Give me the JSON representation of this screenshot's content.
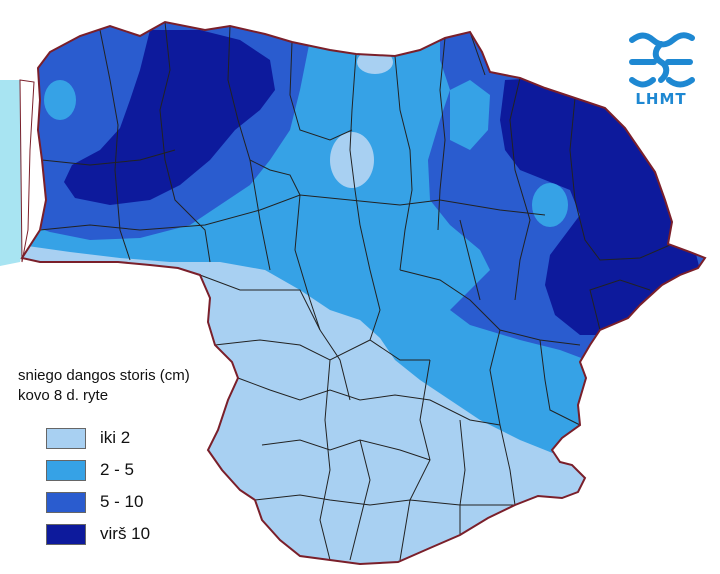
{
  "legend": {
    "title_line1": "sniego dangos storis (cm)",
    "title_line2": "kovo 8 d. ryte",
    "items": [
      {
        "label": "iki 2",
        "color": "#a8d0f2"
      },
      {
        "label": "2 - 5",
        "color": "#36a2e6"
      },
      {
        "label": "5 - 10",
        "color": "#2a5ccf"
      },
      {
        "label": "virš 10",
        "color": "#0d1a9c"
      }
    ]
  },
  "logo": {
    "text": "LHMT",
    "color": "#1e88d2"
  },
  "colors": {
    "border": "#7a1f2a",
    "district_lines": "#222222",
    "sea": "#a8e4f2"
  }
}
